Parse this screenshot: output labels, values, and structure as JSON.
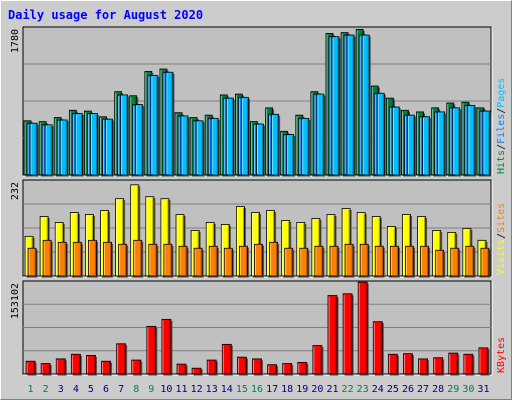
{
  "chart_data": {
    "type": "bar",
    "title": "Daily usage for August 2020",
    "categories": [
      "1",
      "2",
      "3",
      "4",
      "5",
      "6",
      "7",
      "8",
      "9",
      "10",
      "11",
      "12",
      "13",
      "14",
      "15",
      "16",
      "17",
      "18",
      "19",
      "20",
      "21",
      "22",
      "23",
      "24",
      "25",
      "26",
      "27",
      "28",
      "29",
      "30",
      "31"
    ],
    "weekend_days": [
      "1",
      "2",
      "8",
      "9",
      "15",
      "16",
      "22",
      "23",
      "29",
      "30"
    ],
    "panels": [
      {
        "id": "hits_files_pages",
        "max_label": "1780",
        "ymax": 1780,
        "series": [
          {
            "name": "Hits",
            "color": "#008040",
            "values": [
              670,
              660,
              710,
              800,
              790,
              720,
              1030,
              980,
              1280,
              1310,
              770,
              710,
              740,
              990,
              1000,
              660,
              830,
              540,
              740,
              1030,
              1750,
              1760,
              1800,
              1100,
              950,
              800,
              780,
              830,
              890,
              900,
              830
            ]
          },
          {
            "name": "Files",
            "color": "#0080ff",
            "values": [
              640,
              620,
              680,
              760,
              760,
              690,
              990,
              870,
              1230,
              1270,
              730,
              670,
              700,
              950,
              960,
              630,
              750,
              500,
              700,
              1000,
              1710,
              1730,
              1730,
              1010,
              840,
              740,
              720,
              780,
              830,
              860,
              790
            ]
          },
          {
            "name": "Pages",
            "color": "#00c0ff",
            "values": [
              640,
              620,
              680,
              760,
              760,
              690,
              990,
              870,
              1230,
              1270,
              730,
              670,
              700,
              950,
              960,
              630,
              750,
              500,
              700,
              1000,
              1710,
              1730,
              1730,
              1010,
              840,
              740,
              720,
              780,
              830,
              860,
              790
            ]
          }
        ]
      },
      {
        "id": "visits_sites",
        "max_label": "232",
        "ymax": 232,
        "series": [
          {
            "name": "Visits",
            "color": "#ffff00",
            "values": [
              100,
              150,
              135,
              160,
              155,
              165,
              195,
              230,
              200,
              195,
              155,
              115,
              135,
              130,
              175,
              160,
              165,
              140,
              135,
              145,
              155,
              170,
              160,
              150,
              125,
              155,
              150,
              115,
              110,
              120,
              90
            ]
          },
          {
            "name": "Sites",
            "color": "#ff8000",
            "values": [
              70,
              90,
              85,
              85,
              90,
              85,
              80,
              90,
              80,
              80,
              75,
              70,
              75,
              70,
              75,
              80,
              85,
              70,
              70,
              75,
              75,
              80,
              80,
              75,
              75,
              75,
              75,
              65,
              70,
              75,
              70
            ]
          }
        ]
      },
      {
        "id": "kbytes",
        "max_label": "153102",
        "ymax": 153102,
        "series": [
          {
            "name": "KBytes",
            "color": "#ff0000",
            "values": [
              22000,
              18000,
              26000,
              34000,
              32000,
              22000,
              52000,
              24000,
              82000,
              94000,
              17000,
              10000,
              24000,
              51000,
              29000,
              26000,
              16000,
              18000,
              20000,
              49000,
              135000,
              138000,
              158000,
              90000,
              34000,
              35000,
              26000,
              28000,
              36000,
              34000,
              45000
            ]
          }
        ]
      }
    ],
    "legend": {
      "panel1": [
        {
          "text": "Hits",
          "color": "#008040"
        },
        {
          "text": "Files",
          "color": "#0080ff"
        },
        {
          "text": "Pages",
          "color": "#00c0ff"
        }
      ],
      "panel2": [
        {
          "text": "Visits",
          "color": "#ffff00"
        },
        {
          "text": "Sites",
          "color": "#ff8000"
        }
      ],
      "panel3": [
        {
          "text": "KBytes",
          "color": "#ff0000"
        }
      ],
      "separator": "/"
    },
    "colors": {
      "title": "#0000ff",
      "weekday_label": "#000080",
      "weekend_label": "#008040",
      "plot_bg": "#c0c0c0",
      "frame_bg": "#cccccc"
    }
  }
}
